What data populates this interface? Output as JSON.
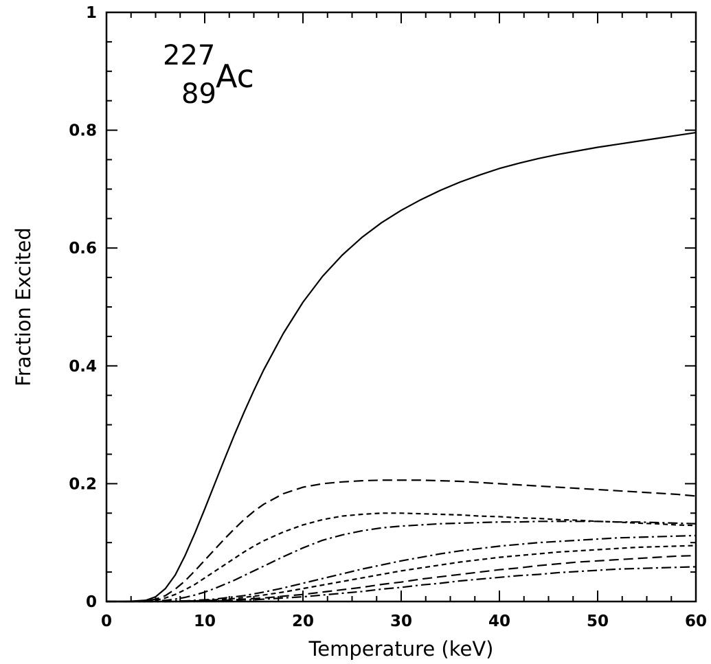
{
  "chart_data": {
    "type": "line",
    "xlabel": "Temperature (keV)",
    "ylabel": "Fraction Excited",
    "xlim": [
      0,
      60
    ],
    "ylim": [
      0,
      1
    ],
    "xticks": [
      0,
      10,
      20,
      30,
      40,
      50,
      60
    ],
    "xtick_labels": [
      "0",
      "10",
      "20",
      "30",
      "40",
      "50",
      "60"
    ],
    "yticks": [
      0,
      0.2,
      0.4,
      0.6,
      0.8,
      1
    ],
    "ytick_labels": [
      "0",
      "0.2",
      "0.4",
      "0.6",
      "0.8",
      "1"
    ],
    "grid": false,
    "annotation": {
      "mass_number": "227",
      "atomic_number": "89",
      "symbol": "Ac"
    },
    "x": [
      0,
      2,
      4,
      5,
      6,
      7,
      8,
      9,
      10,
      11,
      12,
      13,
      14,
      15,
      16,
      18,
      20,
      22,
      24,
      26,
      28,
      30,
      32,
      34,
      36,
      38,
      40,
      42,
      44,
      46,
      48,
      50,
      52,
      54,
      56,
      58,
      60
    ],
    "series": [
      {
        "style": "solid",
        "values": [
          0,
          0,
          0.002,
          0.008,
          0.022,
          0.045,
          0.078,
          0.116,
          0.157,
          0.199,
          0.241,
          0.282,
          0.321,
          0.358,
          0.393,
          0.455,
          0.508,
          0.552,
          0.588,
          0.618,
          0.643,
          0.664,
          0.682,
          0.698,
          0.712,
          0.724,
          0.735,
          0.744,
          0.752,
          0.759,
          0.765,
          0.771,
          0.776,
          0.781,
          0.786,
          0.791,
          0.796
        ]
      },
      {
        "style": "long-dash",
        "values": [
          0,
          0,
          0.001,
          0.004,
          0.01,
          0.021,
          0.035,
          0.052,
          0.07,
          0.088,
          0.106,
          0.123,
          0.139,
          0.153,
          0.165,
          0.183,
          0.194,
          0.2,
          0.203,
          0.205,
          0.206,
          0.206,
          0.206,
          0.205,
          0.204,
          0.202,
          0.2,
          0.198,
          0.196,
          0.194,
          0.192,
          0.19,
          0.188,
          0.186,
          0.184,
          0.182,
          0.179
        ]
      },
      {
        "style": "short-dash",
        "values": [
          0,
          0,
          0.001,
          0.002,
          0.006,
          0.012,
          0.02,
          0.029,
          0.04,
          0.051,
          0.062,
          0.073,
          0.084,
          0.094,
          0.103,
          0.118,
          0.13,
          0.139,
          0.145,
          0.148,
          0.15,
          0.15,
          0.149,
          0.148,
          0.147,
          0.145,
          0.144,
          0.142,
          0.141,
          0.139,
          0.138,
          0.136,
          0.135,
          0.133,
          0.132,
          0.13,
          0.129
        ]
      },
      {
        "style": "dash-dot",
        "values": [
          0,
          0,
          0,
          0.001,
          0.002,
          0.004,
          0.007,
          0.011,
          0.016,
          0.022,
          0.029,
          0.036,
          0.044,
          0.052,
          0.06,
          0.076,
          0.091,
          0.104,
          0.113,
          0.12,
          0.125,
          0.128,
          0.13,
          0.132,
          0.133,
          0.134,
          0.135,
          0.135,
          0.136,
          0.136,
          0.136,
          0.136,
          0.135,
          0.135,
          0.134,
          0.133,
          0.132
        ]
      },
      {
        "style": "dash-dot",
        "values": [
          0,
          0,
          0,
          0,
          0,
          0.001,
          0.001,
          0.002,
          0.003,
          0.004,
          0.006,
          0.008,
          0.01,
          0.013,
          0.016,
          0.023,
          0.031,
          0.039,
          0.047,
          0.055,
          0.062,
          0.069,
          0.075,
          0.081,
          0.086,
          0.09,
          0.094,
          0.097,
          0.1,
          0.102,
          0.104,
          0.106,
          0.108,
          0.109,
          0.11,
          0.111,
          0.112
        ]
      },
      {
        "style": "short-dash",
        "values": [
          0,
          0,
          0,
          0,
          0,
          0,
          0.001,
          0.001,
          0.002,
          0.003,
          0.004,
          0.005,
          0.007,
          0.009,
          0.011,
          0.016,
          0.022,
          0.028,
          0.034,
          0.04,
          0.046,
          0.052,
          0.057,
          0.062,
          0.067,
          0.071,
          0.075,
          0.078,
          0.081,
          0.084,
          0.086,
          0.088,
          0.09,
          0.092,
          0.093,
          0.094,
          0.095
        ]
      },
      {
        "style": "long-dash",
        "values": [
          0,
          0,
          0,
          0,
          0,
          0,
          0,
          0.001,
          0.001,
          0.002,
          0.002,
          0.003,
          0.004,
          0.005,
          0.006,
          0.009,
          0.012,
          0.016,
          0.02,
          0.024,
          0.029,
          0.033,
          0.038,
          0.042,
          0.046,
          0.05,
          0.054,
          0.057,
          0.061,
          0.064,
          0.067,
          0.069,
          0.071,
          0.073,
          0.075,
          0.077,
          0.078
        ]
      },
      {
        "style": "dash-dot",
        "values": [
          0,
          0,
          0,
          0,
          0,
          0,
          0,
          0,
          0.001,
          0.001,
          0.001,
          0.002,
          0.003,
          0.003,
          0.004,
          0.006,
          0.008,
          0.011,
          0.014,
          0.017,
          0.021,
          0.024,
          0.028,
          0.031,
          0.035,
          0.038,
          0.041,
          0.044,
          0.046,
          0.049,
          0.051,
          0.053,
          0.055,
          0.056,
          0.057,
          0.058,
          0.059
        ]
      }
    ]
  }
}
